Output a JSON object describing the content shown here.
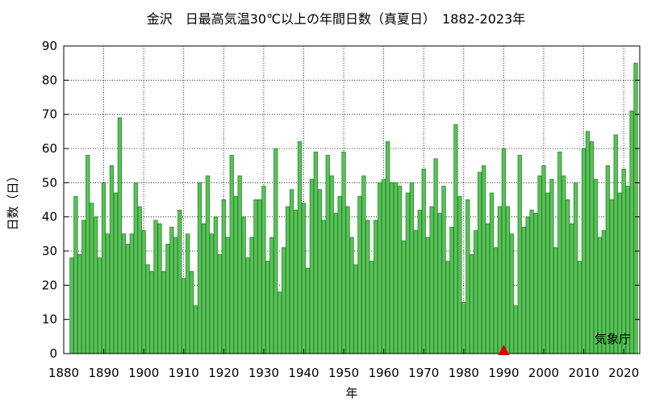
{
  "chart_data": {
    "type": "bar",
    "title": "金沢　日最高気温30℃以上の年間日数（真夏日）　1882-2023年",
    "xlabel": "年",
    "ylabel": "日数（日）",
    "xlim": [
      1880,
      2024
    ],
    "ylim": [
      0,
      90
    ],
    "xticks": [
      1880,
      1890,
      1900,
      1910,
      1920,
      1930,
      1940,
      1950,
      1960,
      1970,
      1980,
      1990,
      2000,
      2010,
      2020
    ],
    "yticks": [
      0,
      10,
      20,
      30,
      40,
      50,
      60,
      70,
      80,
      90
    ],
    "grid": true,
    "bar_color": "#5cc05c",
    "bar_edge_color": "#1e8a1e",
    "marker": {
      "year": 1990,
      "value": 0,
      "color": "#e00000",
      "shape": "triangle"
    },
    "credit": "気象庁",
    "start_year": 1882,
    "values": [
      28,
      46,
      29,
      39,
      58,
      44,
      40,
      28,
      50,
      35,
      55,
      47,
      69,
      35,
      32,
      35,
      50,
      43,
      36,
      26,
      24,
      39,
      38,
      24,
      32,
      37,
      34,
      42,
      22,
      35,
      24,
      14,
      50,
      38,
      52,
      35,
      40,
      29,
      45,
      34,
      58,
      46,
      52,
      40,
      28,
      34,
      45,
      45,
      49,
      27,
      34,
      60,
      18,
      31,
      43,
      48,
      42,
      62,
      44,
      25,
      51,
      59,
      48,
      39,
      58,
      52,
      41,
      46,
      59,
      43,
      34,
      26,
      46,
      52,
      39,
      27,
      39,
      50,
      51,
      62,
      50,
      50,
      49,
      33,
      47,
      50,
      36,
      42,
      54,
      34,
      43,
      57,
      41,
      49,
      27,
      37,
      67,
      46,
      15,
      45,
      29,
      36,
      53,
      55,
      38,
      47,
      31,
      43,
      60,
      43,
      35,
      14,
      58,
      37,
      40,
      42,
      41,
      52,
      55,
      47,
      51,
      31,
      59,
      52,
      45,
      38,
      50,
      27,
      60,
      65,
      62,
      51,
      34,
      36,
      55,
      45,
      64,
      47,
      54,
      49,
      71,
      85
    ]
  }
}
